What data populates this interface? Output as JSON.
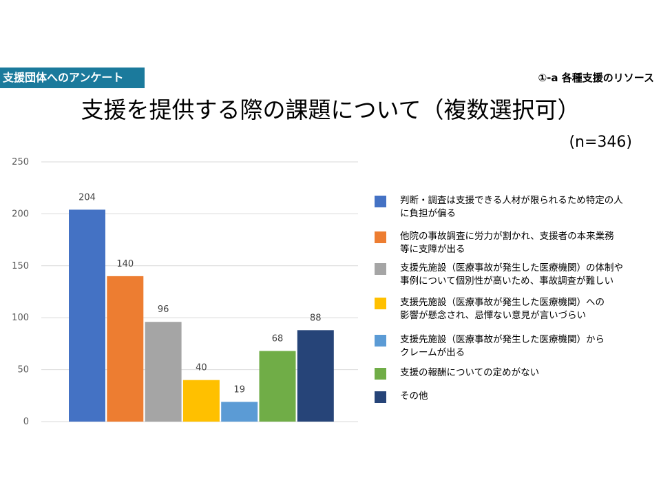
{
  "header": {
    "badge": "支援団体へのアンケート",
    "section": "①-a 各種支援のリソース",
    "title": "支援を提供する際の課題について（複数選択可）",
    "sample_size": "(n=346)"
  },
  "chart_data": {
    "type": "bar",
    "title": "支援を提供する際の課題について（複数選択可）",
    "ylim": [
      0,
      250
    ],
    "yticks": [
      0,
      50,
      100,
      150,
      200,
      250
    ],
    "grid": true,
    "legend_position": "right",
    "categories": [
      "判断・調査は支援できる人材が限られるため特定の人に負担が偏る",
      "他院の事故調査に労力が割かれ、支援者の本来業務等に支障が出る",
      "支援先施設（医療事故が発生した医療機関）の体制や事例について個別性が高いため、事故調査が難しい",
      "支援先施設（医療事故が発生した医療機関）への影響が懸念され、忌憚ない意見が言いづらい",
      "支援先施設（医療事故が発生した医療機関）からクレームが出る",
      "支援の報酬についての定めがない",
      "その他"
    ],
    "values": [
      204,
      140,
      96,
      40,
      19,
      68,
      88
    ],
    "colors": [
      "#4472c4",
      "#ed7d31",
      "#a5a5a5",
      "#ffc000",
      "#5b9bd5",
      "#70ad47",
      "#264478"
    ]
  },
  "legend": [
    {
      "text": "判断・調査は支援できる人材が限られるため特定の人\nに負担が偏る",
      "color": "#4472c4"
    },
    {
      "text": "他院の事故調査に労力が割かれ、支援者の本来業務\n等に支障が出る",
      "color": "#ed7d31"
    },
    {
      "text": "支援先施設（医療事故が発生した医療機関）の体制や\n事例について個別性が高いため、事故調査が難しい",
      "color": "#a5a5a5"
    },
    {
      "text": " 支援先施設（医療事故が発生した医療機関）への\n 影響が懸念され、忌憚ない意見が言いづらい",
      "color": "#ffc000"
    },
    {
      "text": " 支援先施設（医療事故が発生した医療機関）から\n クレームが出る",
      "color": "#5b9bd5"
    },
    {
      "text": "支援の報酬についての定めがない",
      "color": "#70ad47"
    },
    {
      "text": "その他",
      "color": "#264478"
    }
  ]
}
